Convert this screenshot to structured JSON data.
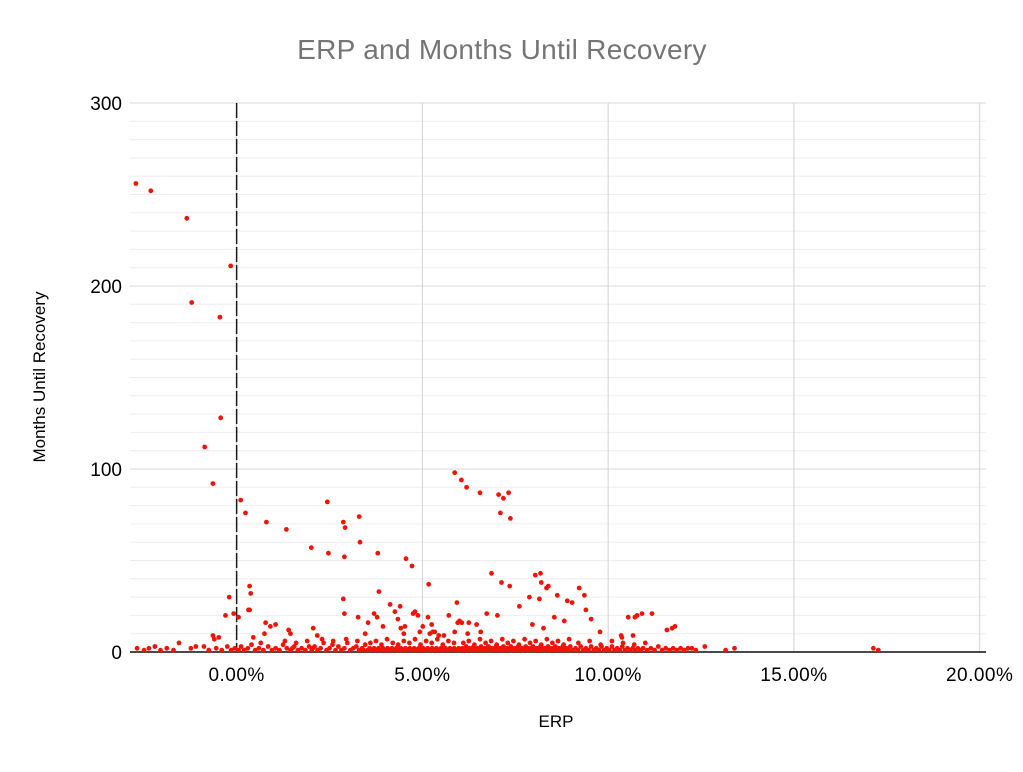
{
  "chart": {
    "title": "ERP and Months Until Recovery",
    "xlabel": "ERP",
    "ylabel": "Months Until Recovery"
  },
  "colors": {
    "title_text": "#757575",
    "axis_text": "#000000",
    "point": "#ee1407",
    "minor_gridline": "#eeeeee",
    "major_gridline": "#d9d9d9",
    "vertical_gridline": "#d2d2d2",
    "baseline": "#4a4a4a",
    "zero_line": "#1a1a1a",
    "background": "#ffffff"
  },
  "chart_data": {
    "type": "scatter",
    "title": "ERP and Months Until Recovery",
    "xlabel": "ERP",
    "ylabel": "Months Until Recovery",
    "legend": "none",
    "grid": "on",
    "x_tick_values": [
      0,
      5,
      10,
      15,
      20
    ],
    "x_tick_labels": [
      "0.00%",
      "5.00%",
      "10.00%",
      "15.00%",
      "20.00%"
    ],
    "y_tick_values": [
      0,
      100,
      200,
      300
    ],
    "y_tick_labels": [
      "0",
      "100",
      "200",
      "300"
    ],
    "xlim": [
      -2.87,
      20.17
    ],
    "ylim": [
      0,
      300
    ],
    "h_minor_step": 10,
    "zero_vline_x": 0,
    "x_units": "percent",
    "points": [
      [
        -2.71,
        256
      ],
      [
        -2.31,
        252
      ],
      [
        -1.34,
        237
      ],
      [
        -0.16,
        211
      ],
      [
        -1.21,
        191
      ],
      [
        -0.45,
        183
      ],
      [
        -0.43,
        128
      ],
      [
        -0.86,
        112
      ],
      [
        -0.64,
        92
      ],
      [
        0.11,
        83
      ],
      [
        0.24,
        76
      ],
      [
        0.8,
        71
      ],
      [
        1.34,
        67
      ],
      [
        2.44,
        82
      ],
      [
        2.87,
        71
      ],
      [
        2.92,
        68
      ],
      [
        3.3,
        74
      ],
      [
        3.32,
        60
      ],
      [
        2.01,
        57
      ],
      [
        2.47,
        54
      ],
      [
        2.9,
        52
      ],
      [
        3.8,
        54
      ],
      [
        4.56,
        51
      ],
      [
        4.72,
        47
      ],
      [
        5.17,
        37
      ],
      [
        5.87,
        98
      ],
      [
        6.05,
        94
      ],
      [
        6.19,
        90
      ],
      [
        6.55,
        87
      ],
      [
        7.05,
        86
      ],
      [
        7.18,
        84
      ],
      [
        7.32,
        87
      ],
      [
        7.1,
        76
      ],
      [
        7.37,
        73
      ],
      [
        -0.2,
        30
      ],
      [
        0.32,
        23
      ],
      [
        -0.08,
        21
      ],
      [
        0.05,
        19
      ],
      [
        -0.3,
        20
      ],
      [
        0.35,
        36
      ],
      [
        0.38,
        32
      ],
      [
        0.35,
        23
      ],
      [
        2.87,
        29
      ],
      [
        3.83,
        33
      ],
      [
        4.13,
        26
      ],
      [
        4.26,
        22
      ],
      [
        4.4,
        25
      ],
      [
        6.86,
        43
      ],
      [
        7.13,
        38
      ],
      [
        7.35,
        36
      ],
      [
        8.04,
        42
      ],
      [
        8.18,
        43
      ],
      [
        8.2,
        38
      ],
      [
        8.34,
        35
      ],
      [
        8.39,
        36
      ],
      [
        7.88,
        30
      ],
      [
        8.15,
        29
      ],
      [
        8.63,
        31
      ],
      [
        8.9,
        28
      ],
      [
        9.03,
        27
      ],
      [
        9.22,
        35
      ],
      [
        9.36,
        31
      ],
      [
        5.93,
        27
      ],
      [
        9.4,
        23
      ],
      [
        7.61,
        25
      ],
      [
        0.78,
        16
      ],
      [
        0.91,
        14
      ],
      [
        1.05,
        15
      ],
      [
        0.75,
        10
      ],
      [
        1.4,
        12
      ],
      [
        1.45,
        10
      ],
      [
        2.06,
        13
      ],
      [
        2.17,
        9
      ],
      [
        2.9,
        21
      ],
      [
        3.27,
        19
      ],
      [
        3.46,
        10
      ],
      [
        3.54,
        16
      ],
      [
        3.7,
        21
      ],
      [
        3.78,
        19
      ],
      [
        3.94,
        14
      ],
      [
        4.34,
        18
      ],
      [
        4.42,
        13
      ],
      [
        4.5,
        10
      ],
      [
        4.53,
        14
      ],
      [
        4.75,
        21
      ],
      [
        4.8,
        22
      ],
      [
        4.88,
        20
      ],
      [
        4.93,
        11
      ],
      [
        5.01,
        14
      ],
      [
        5.15,
        19
      ],
      [
        5.2,
        10
      ],
      [
        5.25,
        15
      ],
      [
        5.28,
        11
      ],
      [
        5.33,
        11
      ],
      [
        5.44,
        9
      ],
      [
        5.58,
        9
      ],
      [
        5.71,
        20
      ],
      [
        5.87,
        11
      ],
      [
        5.95,
        16
      ],
      [
        6.0,
        17
      ],
      [
        6.06,
        16
      ],
      [
        6.22,
        10
      ],
      [
        6.25,
        16
      ],
      [
        6.46,
        15
      ],
      [
        6.57,
        11
      ],
      [
        6.73,
        21
      ],
      [
        7.02,
        20
      ],
      [
        7.96,
        15
      ],
      [
        8.26,
        13
      ],
      [
        8.55,
        19
      ],
      [
        8.82,
        17
      ],
      [
        9.54,
        18
      ],
      [
        9.78,
        11
      ],
      [
        10.35,
        9
      ],
      [
        10.37,
        8
      ],
      [
        10.54,
        19
      ],
      [
        10.67,
        9
      ],
      [
        10.72,
        19
      ],
      [
        10.78,
        20
      ],
      [
        10.91,
        21
      ],
      [
        11.0,
        5
      ],
      [
        11.18,
        21
      ],
      [
        11.58,
        12
      ],
      [
        11.72,
        13
      ],
      [
        11.8,
        14
      ],
      [
        -0.64,
        9
      ],
      [
        -0.6,
        7
      ],
      [
        -0.48,
        8
      ],
      [
        -1.55,
        5
      ],
      [
        0.45,
        8
      ],
      [
        -2.68,
        2
      ],
      [
        -2.49,
        1
      ],
      [
        -2.36,
        2
      ],
      [
        -2.2,
        3
      ],
      [
        -2.05,
        1
      ],
      [
        -1.88,
        2
      ],
      [
        -1.7,
        1
      ],
      [
        -1.23,
        2
      ],
      [
        -1.1,
        3
      ],
      [
        -0.88,
        3
      ],
      [
        -0.75,
        1
      ],
      [
        -0.55,
        2
      ],
      [
        -0.4,
        1
      ],
      [
        -0.25,
        3
      ],
      [
        -0.15,
        1
      ],
      [
        -0.05,
        2
      ],
      [
        0.05,
        1
      ],
      [
        0.12,
        3
      ],
      [
        0.2,
        1
      ],
      [
        0.3,
        2
      ],
      [
        0.4,
        4
      ],
      [
        0.5,
        1
      ],
      [
        0.6,
        2
      ],
      [
        0.65,
        5
      ],
      [
        0.72,
        1
      ],
      [
        0.85,
        3
      ],
      [
        0.95,
        1
      ],
      [
        1.05,
        2
      ],
      [
        1.15,
        1
      ],
      [
        1.25,
        4
      ],
      [
        1.3,
        6
      ],
      [
        1.35,
        2
      ],
      [
        1.45,
        1
      ],
      [
        1.5,
        2
      ],
      [
        1.55,
        3
      ],
      [
        1.6,
        5
      ],
      [
        1.65,
        1
      ],
      [
        1.75,
        2
      ],
      [
        1.85,
        1
      ],
      [
        1.9,
        6
      ],
      [
        1.95,
        3
      ],
      [
        2.02,
        1
      ],
      [
        2.05,
        2
      ],
      [
        2.1,
        3
      ],
      [
        2.18,
        1
      ],
      [
        2.26,
        2
      ],
      [
        2.3,
        7
      ],
      [
        2.34,
        5
      ],
      [
        2.42,
        1
      ],
      [
        2.5,
        2
      ],
      [
        2.58,
        4
      ],
      [
        2.6,
        6
      ],
      [
        2.66,
        1
      ],
      [
        2.74,
        3
      ],
      [
        2.82,
        1
      ],
      [
        2.9,
        2
      ],
      [
        2.95,
        7
      ],
      [
        2.98,
        5
      ],
      [
        3.06,
        1
      ],
      [
        3.14,
        2
      ],
      [
        3.22,
        3
      ],
      [
        3.25,
        6
      ],
      [
        3.3,
        1
      ],
      [
        3.38,
        2
      ],
      [
        3.42,
        1
      ],
      [
        3.46,
        4
      ],
      [
        3.52,
        1
      ],
      [
        3.58,
        2
      ],
      [
        3.64,
        1
      ],
      [
        3.7,
        2
      ],
      [
        3.76,
        1
      ],
      [
        3.82,
        2
      ],
      [
        3.88,
        1
      ],
      [
        3.94,
        2
      ],
      [
        4.0,
        1
      ],
      [
        4.06,
        2
      ],
      [
        4.12,
        1
      ],
      [
        4.18,
        2
      ],
      [
        4.24,
        1
      ],
      [
        4.3,
        2
      ],
      [
        4.36,
        1
      ],
      [
        4.42,
        2
      ],
      [
        4.48,
        1
      ],
      [
        4.54,
        2
      ],
      [
        4.6,
        1
      ],
      [
        4.66,
        2
      ],
      [
        4.72,
        1
      ],
      [
        4.78,
        2
      ],
      [
        4.84,
        1
      ],
      [
        4.9,
        2
      ],
      [
        4.96,
        1
      ],
      [
        5.02,
        2
      ],
      [
        5.08,
        1
      ],
      [
        5.14,
        2
      ],
      [
        5.2,
        1
      ],
      [
        5.26,
        2
      ],
      [
        5.32,
        1
      ],
      [
        5.38,
        2
      ],
      [
        5.44,
        1
      ],
      [
        5.5,
        2
      ],
      [
        5.56,
        1
      ],
      [
        5.62,
        2
      ],
      [
        5.68,
        1
      ],
      [
        5.74,
        2
      ],
      [
        5.8,
        1
      ],
      [
        5.86,
        2
      ],
      [
        5.92,
        1
      ],
      [
        5.98,
        2
      ],
      [
        3.6,
        5
      ],
      [
        3.75,
        6
      ],
      [
        3.9,
        4
      ],
      [
        4.05,
        7
      ],
      [
        4.2,
        5
      ],
      [
        4.35,
        4
      ],
      [
        4.5,
        6
      ],
      [
        4.65,
        5
      ],
      [
        4.8,
        7
      ],
      [
        4.95,
        4
      ],
      [
        5.1,
        6
      ],
      [
        5.25,
        5
      ],
      [
        5.4,
        7
      ],
      [
        5.55,
        4
      ],
      [
        5.7,
        6
      ],
      [
        5.85,
        5
      ],
      [
        6.03,
        1
      ],
      [
        6.08,
        2
      ],
      [
        6.13,
        1
      ],
      [
        6.18,
        3
      ],
      [
        6.23,
        1
      ],
      [
        6.28,
        2
      ],
      [
        6.33,
        1
      ],
      [
        6.38,
        3
      ],
      [
        6.43,
        1
      ],
      [
        6.48,
        2
      ],
      [
        6.53,
        1
      ],
      [
        6.58,
        3
      ],
      [
        6.63,
        1
      ],
      [
        6.68,
        2
      ],
      [
        6.73,
        1
      ],
      [
        6.78,
        3
      ],
      [
        6.83,
        1
      ],
      [
        6.88,
        2
      ],
      [
        6.93,
        1
      ],
      [
        6.98,
        3
      ],
      [
        7.03,
        1
      ],
      [
        7.08,
        2
      ],
      [
        7.13,
        1
      ],
      [
        7.18,
        3
      ],
      [
        7.23,
        1
      ],
      [
        7.28,
        2
      ],
      [
        7.33,
        1
      ],
      [
        7.38,
        3
      ],
      [
        7.43,
        1
      ],
      [
        7.48,
        2
      ],
      [
        7.53,
        1
      ],
      [
        7.58,
        3
      ],
      [
        7.63,
        1
      ],
      [
        7.68,
        2
      ],
      [
        7.73,
        1
      ],
      [
        7.78,
        3
      ],
      [
        7.83,
        1
      ],
      [
        7.88,
        2
      ],
      [
        7.93,
        1
      ],
      [
        7.98,
        3
      ],
      [
        8.03,
        1
      ],
      [
        8.08,
        2
      ],
      [
        8.13,
        1
      ],
      [
        8.18,
        3
      ],
      [
        8.23,
        1
      ],
      [
        8.28,
        2
      ],
      [
        8.33,
        1
      ],
      [
        8.38,
        3
      ],
      [
        8.43,
        1
      ],
      [
        8.48,
        2
      ],
      [
        8.53,
        1
      ],
      [
        8.58,
        3
      ],
      [
        8.63,
        1
      ],
      [
        8.68,
        2
      ],
      [
        8.73,
        1
      ],
      [
        8.78,
        3
      ],
      [
        8.83,
        1
      ],
      [
        8.88,
        2
      ],
      [
        8.93,
        1
      ],
      [
        8.98,
        3
      ],
      [
        6.1,
        5
      ],
      [
        6.25,
        6
      ],
      [
        6.4,
        4
      ],
      [
        6.55,
        7
      ],
      [
        6.7,
        5
      ],
      [
        6.85,
        6
      ],
      [
        7.0,
        4
      ],
      [
        7.15,
        7
      ],
      [
        7.3,
        5
      ],
      [
        7.45,
        6
      ],
      [
        7.6,
        4
      ],
      [
        7.75,
        7
      ],
      [
        7.9,
        5
      ],
      [
        8.05,
        6
      ],
      [
        8.2,
        4
      ],
      [
        8.35,
        7
      ],
      [
        8.5,
        5
      ],
      [
        8.65,
        6
      ],
      [
        8.8,
        4
      ],
      [
        8.95,
        7
      ],
      [
        9.05,
        1
      ],
      [
        9.12,
        2
      ],
      [
        9.19,
        1
      ],
      [
        9.26,
        3
      ],
      [
        9.33,
        1
      ],
      [
        9.4,
        2
      ],
      [
        9.47,
        1
      ],
      [
        9.54,
        3
      ],
      [
        9.61,
        1
      ],
      [
        9.68,
        2
      ],
      [
        9.75,
        1
      ],
      [
        9.82,
        3
      ],
      [
        9.89,
        1
      ],
      [
        9.96,
        2
      ],
      [
        10.03,
        1
      ],
      [
        10.1,
        3
      ],
      [
        10.17,
        1
      ],
      [
        10.24,
        2
      ],
      [
        10.31,
        1
      ],
      [
        10.38,
        3
      ],
      [
        10.45,
        1
      ],
      [
        10.52,
        2
      ],
      [
        10.59,
        1
      ],
      [
        10.66,
        2
      ],
      [
        10.73,
        1
      ],
      [
        10.8,
        2
      ],
      [
        10.87,
        1
      ],
      [
        10.94,
        2
      ],
      [
        9.2,
        5
      ],
      [
        9.5,
        6
      ],
      [
        9.8,
        4
      ],
      [
        10.1,
        6
      ],
      [
        10.4,
        5
      ],
      [
        10.7,
        4
      ],
      [
        11.05,
        1
      ],
      [
        11.15,
        2
      ],
      [
        11.25,
        1
      ],
      [
        11.35,
        3
      ],
      [
        11.45,
        1
      ],
      [
        11.55,
        2
      ],
      [
        11.65,
        1
      ],
      [
        11.75,
        2
      ],
      [
        11.85,
        1
      ],
      [
        11.95,
        2
      ],
      [
        12.05,
        1
      ],
      [
        12.15,
        2
      ],
      [
        12.25,
        2
      ],
      [
        12.36,
        1
      ],
      [
        12.6,
        3
      ],
      [
        13.16,
        1
      ],
      [
        13.4,
        2
      ],
      [
        17.14,
        2
      ],
      [
        17.27,
        1
      ]
    ]
  }
}
